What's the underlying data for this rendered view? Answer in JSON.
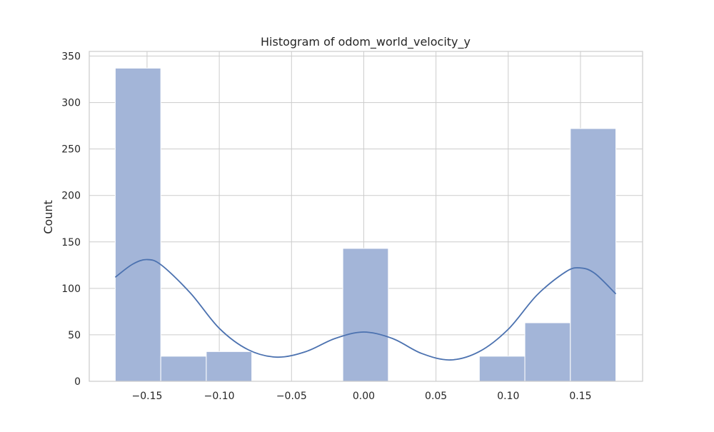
{
  "chart_data": {
    "type": "bar",
    "title": "Histogram of odom_world_velocity_y",
    "xlabel": "",
    "ylabel": "Count",
    "xlim": [
      -0.19,
      0.193
    ],
    "ylim": [
      0,
      355
    ],
    "grid": true,
    "x_ticks": [
      -0.15,
      -0.1,
      -0.05,
      0.0,
      0.05,
      0.1,
      0.15
    ],
    "x_tick_labels": [
      "−0.15",
      "−0.10",
      "−0.05",
      "0.00",
      "0.05",
      "0.10",
      "0.15"
    ],
    "y_ticks": [
      0,
      50,
      100,
      150,
      200,
      250,
      300,
      350
    ],
    "y_tick_labels": [
      "0",
      "50",
      "100",
      "150",
      "200",
      "250",
      "300",
      "350"
    ],
    "bins": [
      {
        "x0": -0.172,
        "x1": -0.1405,
        "count": 337
      },
      {
        "x0": -0.1405,
        "x1": -0.109,
        "count": 27
      },
      {
        "x0": -0.109,
        "x1": -0.0775,
        "count": 32
      },
      {
        "x0": -0.0775,
        "x1": -0.046,
        "count": 0
      },
      {
        "x0": -0.046,
        "x1": -0.0145,
        "count": 0
      },
      {
        "x0": -0.0145,
        "x1": 0.017,
        "count": 143
      },
      {
        "x0": 0.017,
        "x1": 0.0485,
        "count": 0
      },
      {
        "x0": 0.0485,
        "x1": 0.08,
        "count": 0
      },
      {
        "x0": 0.08,
        "x1": 0.1115,
        "count": 27
      },
      {
        "x0": 0.1115,
        "x1": 0.143,
        "count": 63
      },
      {
        "x0": 0.143,
        "x1": 0.1745,
        "count": 272
      }
    ],
    "kde": {
      "x": [
        -0.172,
        -0.16,
        -0.15,
        -0.14,
        -0.12,
        -0.1,
        -0.08,
        -0.06,
        -0.04,
        -0.02,
        0.0,
        0.02,
        0.04,
        0.06,
        0.08,
        0.1,
        0.12,
        0.14,
        0.15,
        0.16,
        0.1745
      ],
      "y": [
        112,
        126,
        131,
        125,
        95,
        57,
        34,
        26,
        32,
        46,
        53,
        46,
        30,
        23,
        32,
        56,
        93,
        118,
        122,
        116,
        94
      ]
    },
    "colors": {
      "bar_fill": "#a3b5d8",
      "bar_edge": "#ffffff",
      "kde_line": "#4c72b0",
      "grid": "#cccccc",
      "axes_edge": "#cccccc"
    }
  }
}
